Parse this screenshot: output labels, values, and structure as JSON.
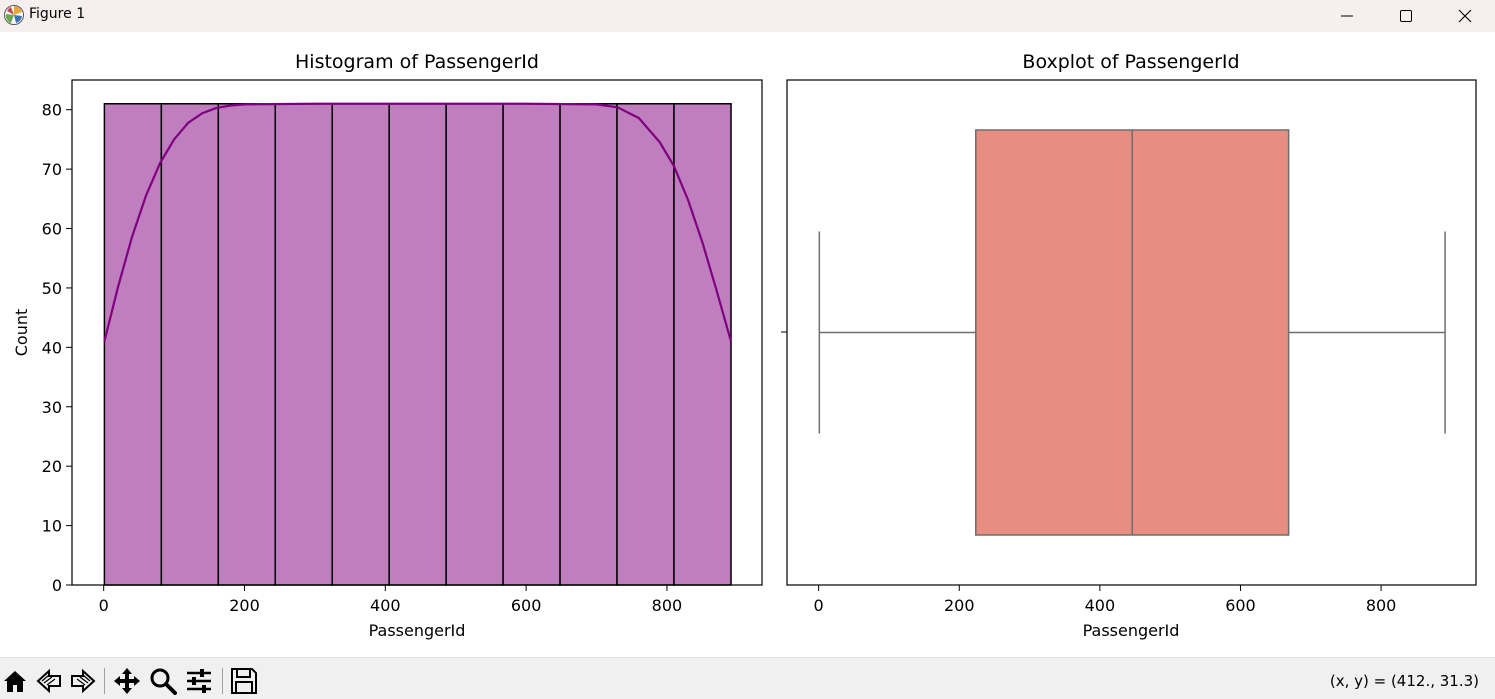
{
  "window": {
    "title": "Figure 1",
    "icons": [
      "matplotlib-logo-icon",
      "minimize-icon",
      "maximize-icon",
      "close-icon"
    ]
  },
  "toolbar": {
    "tools": [
      "home-icon",
      "back-icon",
      "forward-icon",
      "pan-icon",
      "zoom-icon",
      "configure-subplots-icon",
      "save-icon"
    ],
    "coords": "(x, y) = (412., 31.3)"
  },
  "colors": {
    "hist_fill": "#bf7fbf",
    "hist_edge": "#000000",
    "kde_line": "#800080",
    "box_fill": "#e88d82",
    "box_line": "#6e6e6e"
  },
  "chart_data": [
    {
      "type": "bar",
      "title": "Histogram of PassengerId",
      "xlabel": "PassengerId",
      "ylabel": "Count",
      "xlim": [
        -45,
        935
      ],
      "ylim": [
        0,
        85
      ],
      "xticks": [
        0,
        200,
        400,
        600,
        800
      ],
      "yticks": [
        0,
        10,
        20,
        30,
        40,
        50,
        60,
        70,
        80
      ],
      "bin_edges": [
        1,
        81.9,
        162.8,
        243.7,
        324.6,
        405.5,
        486.4,
        567.3,
        648.2,
        729.1,
        810,
        891
      ],
      "values": [
        81,
        81,
        81,
        81,
        81,
        81,
        81,
        81,
        81,
        81,
        81
      ],
      "kde": {
        "x": [
          1,
          20,
          40,
          60,
          80,
          100,
          120,
          140,
          160,
          180,
          200,
          300,
          400,
          500,
          600,
          700,
          730,
          760,
          790,
          810,
          830,
          850,
          870,
          891
        ],
        "y": [
          41,
          50,
          58.5,
          65.5,
          71,
          75,
          77.8,
          79.4,
          80.3,
          80.7,
          80.9,
          81,
          81,
          81,
          81,
          80.9,
          80.4,
          78.6,
          74.5,
          70.5,
          64.8,
          57.8,
          49.8,
          41
        ]
      }
    },
    {
      "type": "box",
      "title": "Boxplot of PassengerId",
      "xlabel": "PassengerId",
      "xlim": [
        -45,
        935
      ],
      "xticks": [
        0,
        200,
        400,
        600,
        800
      ],
      "whisker_low": 1,
      "q1": 223.5,
      "median": 446,
      "q3": 668.5,
      "whisker_high": 891
    }
  ]
}
